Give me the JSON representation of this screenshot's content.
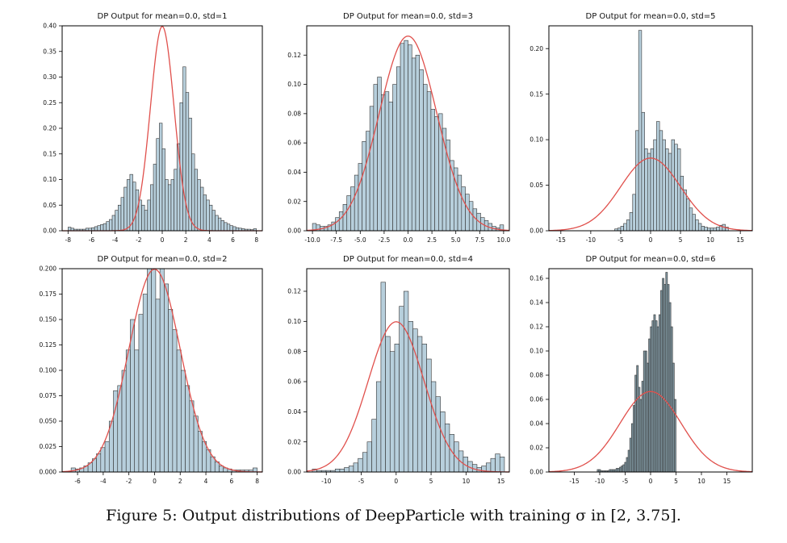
{
  "caption": "Figure 5: Output distributions of DeepParticle with training σ in [2, 3.75].",
  "colors": {
    "bar_fill": "#b7cfdc",
    "bar_fill_dark": "#7f96a0",
    "bar_edge": "#333333",
    "curve": "#e0504c"
  },
  "chart_data": [
    {
      "type": "bar",
      "title": "DP Output for mean=0.0, std=1",
      "xlim": [
        -8.5,
        8.5
      ],
      "ylim": [
        0,
        0.4
      ],
      "xticks": [
        -8,
        -6,
        -4,
        -2,
        0,
        2,
        4,
        6,
        8
      ],
      "yticks": [
        0.0,
        0.05,
        0.1,
        0.15,
        0.2,
        0.25,
        0.3,
        0.35,
        0.4
      ],
      "ytick_labels": [
        "0.00",
        "0.05",
        "0.10",
        "0.15",
        "0.20",
        "0.25",
        "0.30",
        "0.35",
        "0.40"
      ],
      "bin_range": [
        -8,
        8
      ],
      "densities": [
        0.007,
        0.005,
        0.003,
        0.003,
        0.003,
        0.003,
        0.005,
        0.005,
        0.006,
        0.008,
        0.01,
        0.012,
        0.014,
        0.018,
        0.022,
        0.03,
        0.04,
        0.05,
        0.065,
        0.085,
        0.1,
        0.11,
        0.095,
        0.08,
        0.06,
        0.05,
        0.04,
        0.06,
        0.09,
        0.13,
        0.18,
        0.21,
        0.16,
        0.1,
        0.09,
        0.1,
        0.12,
        0.17,
        0.25,
        0.32,
        0.27,
        0.22,
        0.15,
        0.12,
        0.1,
        0.085,
        0.07,
        0.06,
        0.05,
        0.04,
        0.03,
        0.025,
        0.02,
        0.016,
        0.013,
        0.01,
        0.008,
        0.006,
        0.005,
        0.004,
        0.003,
        0.003,
        0.002,
        0.004
      ],
      "curve": {
        "mean": 0,
        "std": 1
      }
    },
    {
      "type": "bar",
      "title": "DP Output for mean=0.0, std=3",
      "xlim": [
        -10.6,
        10.6
      ],
      "ylim": [
        0,
        0.14
      ],
      "xticks": [
        -10,
        -7.5,
        -5,
        -2.5,
        0,
        2.5,
        5,
        7.5,
        10
      ],
      "xtick_labels": [
        "-10.0",
        "-7.5",
        "-5.0",
        "-2.5",
        "0.0",
        "2.5",
        "5.0",
        "7.5",
        "10.0"
      ],
      "yticks": [
        0.0,
        0.02,
        0.04,
        0.06,
        0.08,
        0.1,
        0.12
      ],
      "ytick_labels": [
        "0.00",
        "0.02",
        "0.04",
        "0.06",
        "0.08",
        "0.10",
        "0.12"
      ],
      "bin_range": [
        -10,
        10
      ],
      "densities": [
        0.005,
        0.004,
        0.003,
        0.003,
        0.004,
        0.006,
        0.009,
        0.013,
        0.018,
        0.024,
        0.03,
        0.038,
        0.046,
        0.061,
        0.068,
        0.085,
        0.1,
        0.105,
        0.093,
        0.095,
        0.088,
        0.1,
        0.112,
        0.128,
        0.13,
        0.127,
        0.118,
        0.12,
        0.11,
        0.1,
        0.095,
        0.083,
        0.078,
        0.08,
        0.07,
        0.062,
        0.048,
        0.043,
        0.038,
        0.03,
        0.025,
        0.02,
        0.015,
        0.012,
        0.009,
        0.007,
        0.005,
        0.003,
        0.002,
        0.004
      ],
      "curve": {
        "mean": 0,
        "std": 3
      }
    },
    {
      "type": "bar",
      "title": "DP Output for mean=0.0, std=5",
      "xlim": [
        -17,
        17
      ],
      "ylim": [
        0,
        0.225
      ],
      "xticks": [
        -15,
        -10,
        -5,
        0,
        5,
        10,
        15
      ],
      "yticks": [
        0.0,
        0.05,
        0.1,
        0.15,
        0.2
      ],
      "ytick_labels": [
        "0.00",
        "0.05",
        "0.10",
        "0.15",
        "0.20"
      ],
      "bin_range": [
        -15,
        15
      ],
      "densities": [
        0,
        0,
        0,
        0,
        0,
        0,
        0,
        0,
        0,
        0,
        0,
        0,
        0,
        0,
        0,
        0,
        0,
        0,
        0.002,
        0.003,
        0.005,
        0.008,
        0.012,
        0.02,
        0.04,
        0.11,
        0.22,
        0.13,
        0.09,
        0.085,
        0.09,
        0.1,
        0.12,
        0.11,
        0.1,
        0.09,
        0.085,
        0.1,
        0.095,
        0.09,
        0.06,
        0.045,
        0.035,
        0.025,
        0.018,
        0.012,
        0.008,
        0.005,
        0.004,
        0.003,
        0.003,
        0.003,
        0.004,
        0.006,
        0.007,
        0.004,
        0,
        0,
        0,
        0
      ],
      "curve": {
        "mean": 0,
        "std": 5
      }
    },
    {
      "type": "bar",
      "title": "DP Output for mean=0.0, std=2",
      "xlim": [
        -7.2,
        8.4
      ],
      "ylim": [
        0,
        0.2
      ],
      "xticks": [
        -6,
        -4,
        -2,
        0,
        2,
        4,
        6,
        8
      ],
      "yticks": [
        0.0,
        0.025,
        0.05,
        0.075,
        0.1,
        0.125,
        0.15,
        0.175,
        0.2
      ],
      "ytick_labels": [
        "0.000",
        "0.025",
        "0.050",
        "0.075",
        "0.100",
        "0.125",
        "0.150",
        "0.175",
        "0.200"
      ],
      "bin_range": [
        -6.5,
        8
      ],
      "densities": [
        0.004,
        0.003,
        0.004,
        0.006,
        0.009,
        0.013,
        0.018,
        0.024,
        0.03,
        0.05,
        0.08,
        0.085,
        0.1,
        0.12,
        0.15,
        0.12,
        0.155,
        0.175,
        0.205,
        0.2,
        0.17,
        0.205,
        0.185,
        0.16,
        0.14,
        0.12,
        0.1,
        0.085,
        0.07,
        0.055,
        0.04,
        0.03,
        0.022,
        0.015,
        0.01,
        0.006,
        0.004,
        0.003,
        0.002,
        0.002,
        0.002,
        0.002,
        0.002,
        0.004
      ],
      "curve": {
        "mean": 0,
        "std": 2
      }
    },
    {
      "type": "bar",
      "title": "DP Output for mean=0.0, std=4",
      "xlim": [
        -12.8,
        16.2
      ],
      "ylim": [
        0,
        0.135
      ],
      "xticks": [
        -10,
        -5,
        0,
        5,
        10,
        15
      ],
      "yticks": [
        0.0,
        0.02,
        0.04,
        0.06,
        0.08,
        0.1,
        0.12
      ],
      "ytick_labels": [
        "0.00",
        "0.02",
        "0.04",
        "0.06",
        "0.08",
        "0.10",
        "0.12"
      ],
      "bin_range": [
        -12,
        15.5
      ],
      "densities": [
        0.002,
        0.001,
        0.001,
        0.001,
        0.001,
        0.002,
        0.002,
        0.003,
        0.004,
        0.006,
        0.009,
        0.013,
        0.02,
        0.035,
        0.06,
        0.126,
        0.09,
        0.08,
        0.085,
        0.11,
        0.12,
        0.1,
        0.095,
        0.09,
        0.085,
        0.075,
        0.06,
        0.05,
        0.04,
        0.032,
        0.025,
        0.02,
        0.014,
        0.01,
        0.007,
        0.005,
        0.003,
        0.004,
        0.006,
        0.009,
        0.012,
        0.01
      ],
      "curve": {
        "mean": 0,
        "std": 4
      }
    },
    {
      "type": "bar",
      "title": "DP Output for mean=0.0, std=6",
      "xlim": [
        -20,
        20
      ],
      "ylim": [
        0,
        0.168
      ],
      "xticks": [
        -15,
        -10,
        -5,
        0,
        5,
        10,
        15
      ],
      "yticks": [
        0.0,
        0.02,
        0.04,
        0.06,
        0.08,
        0.1,
        0.12,
        0.14,
        0.16
      ],
      "ytick_labels": [
        "0.00",
        "0.02",
        "0.04",
        "0.06",
        "0.08",
        "0.10",
        "0.12",
        "0.14",
        "0.16"
      ],
      "bin_range": [
        -10.5,
        5
      ],
      "dark_bars": true,
      "densities": [
        0.002,
        0.002,
        0.001,
        0.001,
        0.001,
        0.001,
        0.001,
        0.002,
        0.002,
        0.002,
        0.002,
        0.003,
        0.003,
        0.004,
        0.005,
        0.006,
        0.008,
        0.012,
        0.018,
        0.028,
        0.04,
        0.055,
        0.08,
        0.088,
        0.07,
        0.06,
        0.075,
        0.1,
        0.1,
        0.09,
        0.11,
        0.12,
        0.125,
        0.13,
        0.125,
        0.12,
        0.13,
        0.15,
        0.16,
        0.155,
        0.165,
        0.155,
        0.14,
        0.12,
        0.09,
        0.06
      ],
      "curve": {
        "mean": 0,
        "std": 6
      }
    }
  ]
}
